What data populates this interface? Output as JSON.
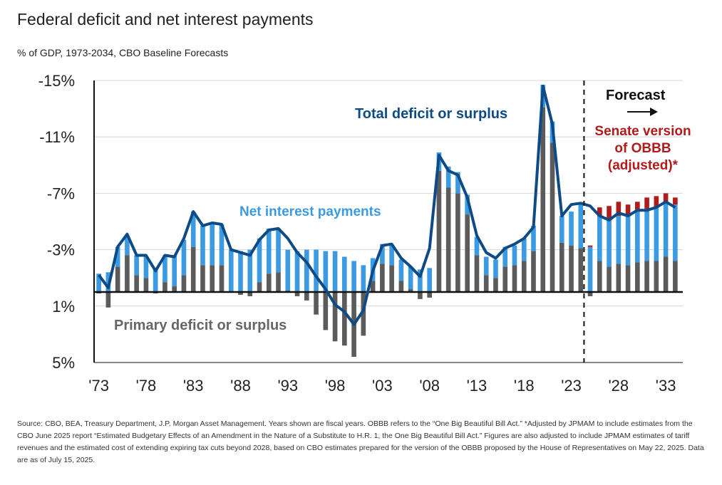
{
  "title": "Federal deficit and net interest payments",
  "subtitle": "% of GDP, 1973-2034, CBO Baseline Forecasts",
  "source": "Source: CBO, BEA, Treasury Department, J.P. Morgan Asset Management. Years shown are fiscal years. OBBB refers to the “One Big Beautiful Bill Act.” *Adjusted by JPMAM to include estimates from the CBO June 2025 report “Estimated Budgetary Effects of an Amendment in the Nature of a Substitute to H.R. 1, the One Big Beautiful Bill Act.” Figures are also adjusted to include JPMAM estimates of tariff revenues and the estimated cost of extending expiring tax cuts beyond 2028, based on CBO estimates prepared for the version of the OBBB proposed by the House of Representatives on May 22, 2025. Data are as of July 15, 2025.",
  "chart_data": {
    "type": "bar",
    "stacked_with_line": true,
    "sign_note": "Deficits are positive values plotted upward (axis labels show deficits as negative %)",
    "x": [
      1973,
      1974,
      1975,
      1976,
      1977,
      1978,
      1979,
      1980,
      1981,
      1982,
      1983,
      1984,
      1985,
      1986,
      1987,
      1988,
      1989,
      1990,
      1991,
      1992,
      1993,
      1994,
      1995,
      1996,
      1997,
      1998,
      1999,
      2000,
      2001,
      2002,
      2003,
      2004,
      2005,
      2006,
      2007,
      2008,
      2009,
      2010,
      2011,
      2012,
      2013,
      2014,
      2015,
      2016,
      2017,
      2018,
      2019,
      2020,
      2021,
      2022,
      2023,
      2024,
      2025,
      2026,
      2027,
      2028,
      2029,
      2030,
      2031,
      2032,
      2033,
      2034
    ],
    "series": [
      {
        "name": "Primary deficit or surplus",
        "color": "#5b5b5b",
        "values": [
          -0.1,
          -1.1,
          1.8,
          2.6,
          1.2,
          1.0,
          -0.1,
          0.7,
          0.4,
          1.2,
          3.2,
          1.9,
          1.9,
          1.9,
          0.0,
          -0.2,
          -0.3,
          0.7,
          1.3,
          1.4,
          0.1,
          -0.3,
          -0.6,
          -1.6,
          -2.7,
          -3.5,
          -3.8,
          -4.6,
          -3.1,
          0.8,
          2.0,
          1.9,
          0.8,
          0.2,
          -0.5,
          -0.4,
          8.6,
          7.4,
          7.0,
          5.5,
          2.6,
          1.2,
          1.0,
          1.8,
          1.9,
          2.2,
          2.9,
          13.1,
          10.6,
          3.5,
          3.3,
          3.1,
          -0.3,
          2.2,
          1.8,
          2.0,
          1.9,
          2.1,
          2.2,
          2.2,
          2.5,
          2.2
        ]
      },
      {
        "name": "Net interest payments",
        "color": "#3b9ae1",
        "values": [
          1.3,
          1.4,
          1.4,
          1.4,
          1.4,
          1.5,
          1.6,
          1.9,
          2.2,
          2.5,
          2.5,
          2.8,
          3.0,
          2.9,
          3.0,
          2.9,
          3.0,
          3.1,
          3.2,
          3.1,
          2.9,
          2.9,
          3.0,
          3.0,
          2.9,
          2.9,
          2.5,
          2.2,
          1.9,
          1.6,
          1.4,
          1.4,
          1.5,
          1.6,
          1.6,
          1.7,
          1.3,
          1.5,
          1.5,
          1.4,
          1.3,
          1.3,
          1.3,
          1.4,
          1.4,
          1.6,
          1.8,
          1.6,
          1.5,
          1.9,
          2.4,
          3.1,
          3.2,
          3.2,
          3.4,
          3.4,
          3.5,
          3.6,
          3.7,
          3.8,
          3.9,
          4.0
        ]
      },
      {
        "name": "Senate version of OBBB (adjusted)*",
        "color": "#b01c1c",
        "values": [
          null,
          null,
          null,
          null,
          null,
          null,
          null,
          null,
          null,
          null,
          null,
          null,
          null,
          null,
          null,
          null,
          null,
          null,
          null,
          null,
          null,
          null,
          null,
          null,
          null,
          null,
          null,
          null,
          null,
          null,
          null,
          null,
          null,
          null,
          null,
          null,
          null,
          null,
          null,
          null,
          null,
          null,
          null,
          null,
          null,
          null,
          null,
          null,
          null,
          null,
          null,
          null,
          0.1,
          0.6,
          0.9,
          1.0,
          0.8,
          0.7,
          0.8,
          0.8,
          0.6,
          0.5
        ]
      },
      {
        "name": "Total deficit or surplus",
        "color": "#0d4a86",
        "kind": "line",
        "values": [
          1.2,
          0.3,
          3.2,
          4.1,
          2.6,
          2.6,
          1.5,
          2.6,
          2.5,
          3.8,
          5.7,
          4.7,
          4.9,
          4.8,
          3.0,
          2.8,
          2.6,
          3.7,
          4.4,
          4.5,
          3.8,
          2.8,
          2.1,
          1.1,
          0.2,
          -0.9,
          -1.4,
          -2.3,
          -1.3,
          1.5,
          3.3,
          3.4,
          2.4,
          1.8,
          1.1,
          3.1,
          9.7,
          8.6,
          8.3,
          6.7,
          4.0,
          2.8,
          2.4,
          3.1,
          3.4,
          3.8,
          4.6,
          14.6,
          11.9,
          5.4,
          6.2,
          6.3,
          6.1,
          5.4,
          5.1,
          5.6,
          5.4,
          5.8,
          5.8,
          6.0,
          6.4,
          6.0
        ]
      }
    ],
    "ylim": [
      -5,
      15
    ],
    "y_ticks": [
      15,
      11,
      7,
      3,
      -1,
      -5
    ],
    "y_tick_labels": [
      "-15%",
      "-11%",
      "-7%",
      "-3%",
      "1%",
      "5%"
    ],
    "x_tick_labels": [
      "'73",
      "'78",
      "'83",
      "'88",
      "'93",
      "'98",
      "'03",
      "'08",
      "'13",
      "'18",
      "'23",
      "'28",
      "'33"
    ],
    "x_tick_years": [
      1973,
      1978,
      1983,
      1988,
      1993,
      1998,
      2003,
      2008,
      2013,
      2018,
      2023,
      2028,
      2033
    ],
    "forecast_start": 2025,
    "annotations": {
      "forecast": "Forecast",
      "senate": [
        "Senate version",
        "of OBBB",
        "(adjusted)*"
      ],
      "total": "Total deficit or surplus",
      "interest": "Net interest payments",
      "primary": "Primary deficit or surplus"
    }
  }
}
